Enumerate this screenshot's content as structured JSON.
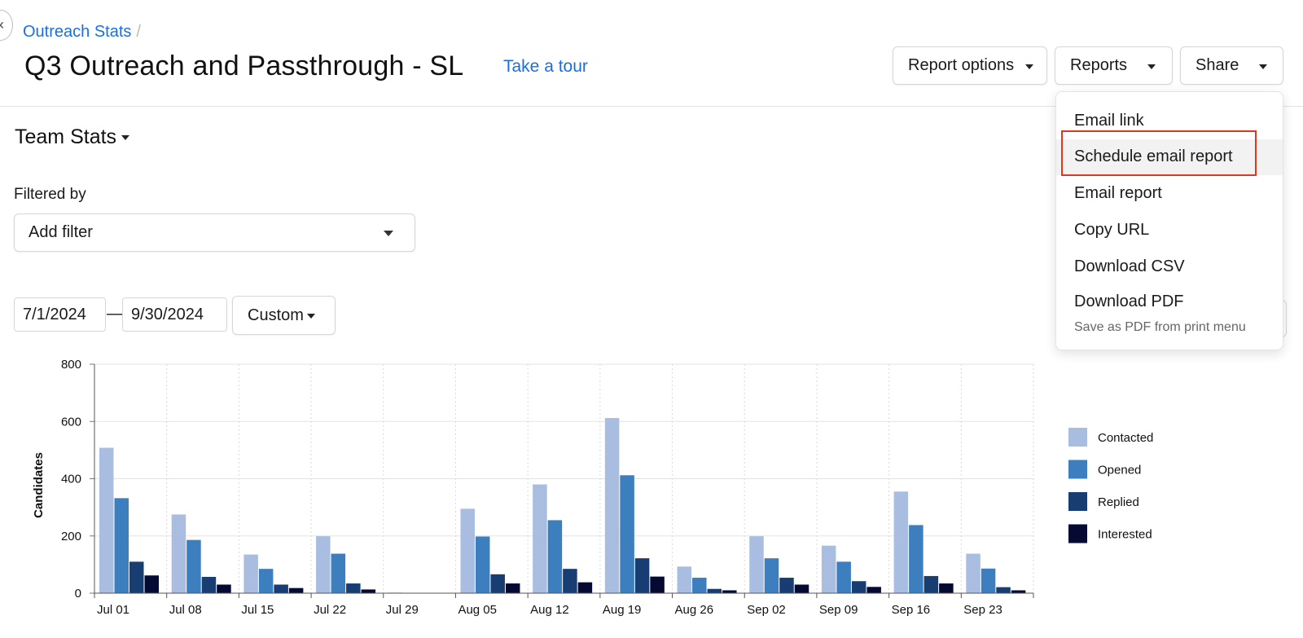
{
  "breadcrumb": {
    "link": "Outreach Stats",
    "separator": "/"
  },
  "header": {
    "title": "Q3 Outreach and Passthrough - SL",
    "tour_link": "Take a tour",
    "report_options_label": "Report options",
    "reports_label": "Reports",
    "share_label": "Share"
  },
  "section": {
    "title": "Team Stats"
  },
  "filters": {
    "label": "Filtered by",
    "add_filter": "Add filter"
  },
  "date_range": {
    "start": "7/1/2024",
    "separator": "—",
    "end": "9/30/2024",
    "preset": "Custom"
  },
  "reports_menu": {
    "items": [
      "Email link",
      "Schedule email report",
      "Email report",
      "Copy URL",
      "Download CSV",
      "Download PDF"
    ],
    "highlighted_index": 1,
    "note": "Save as PDF from print menu"
  },
  "chart_data": {
    "type": "bar",
    "ylabel": "Candidates",
    "ylim": [
      0,
      800
    ],
    "yticks": [
      0,
      200,
      400,
      600,
      800
    ],
    "grid": true,
    "legend_position": "right",
    "categories": [
      "Jul 01",
      "Jul 08",
      "Jul 15",
      "Jul 22",
      "Jul 29",
      "Aug 05",
      "Aug 12",
      "Aug 19",
      "Aug 26",
      "Sep 02",
      "Sep 09",
      "Sep 16",
      "Sep 23"
    ],
    "series": [
      {
        "name": "Contacted",
        "color": "#a8bddf",
        "values": [
          508,
          275,
          135,
          199,
          2,
          295,
          380,
          612,
          93,
          199,
          166,
          355,
          138
        ]
      },
      {
        "name": "Opened",
        "color": "#3d7ebe",
        "values": [
          332,
          186,
          85,
          138,
          1,
          198,
          255,
          412,
          54,
          122,
          110,
          238,
          86
        ]
      },
      {
        "name": "Replied",
        "color": "#173d72",
        "values": [
          110,
          57,
          30,
          34,
          1,
          66,
          85,
          122,
          15,
          54,
          42,
          60,
          21
        ]
      },
      {
        "name": "Interested",
        "color": "#050a33",
        "values": [
          62,
          30,
          18,
          13,
          1,
          34,
          38,
          58,
          10,
          30,
          22,
          34,
          10
        ]
      }
    ]
  }
}
